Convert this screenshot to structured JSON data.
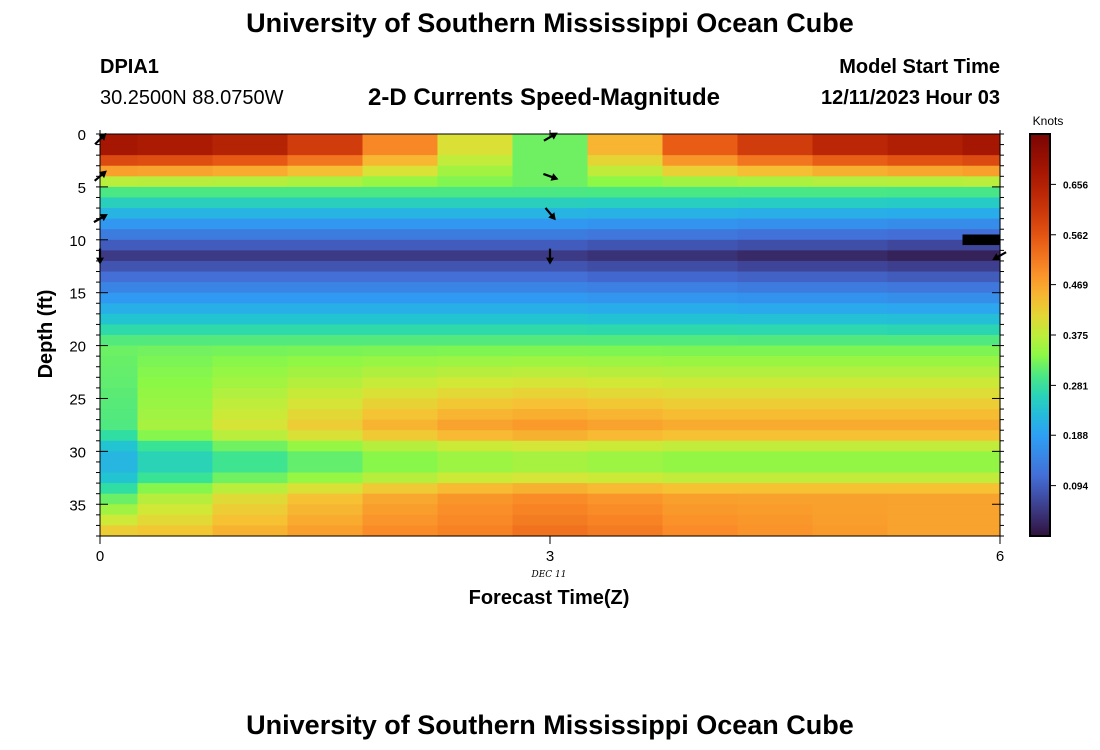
{
  "header": {
    "title": "University of Southern Mississippi Ocean Cube",
    "station_id": "DPIA1",
    "coordinates": "30.2500N  88.0750W",
    "chart_title": "2-D Currents Speed-Magnitude",
    "model_start_label": "Model Start Time",
    "model_start_value": "12/11/2023 Hour 03"
  },
  "footer": {
    "title": "University of Southern Mississippi Ocean Cube"
  },
  "chart_data": {
    "type": "heatmap",
    "title": "2-D Currents Speed-Magnitude",
    "xlabel": "Forecast Time(Z)",
    "ylabel": "Depth (ft)",
    "x_ticks": [
      "0",
      "3",
      "6"
    ],
    "x_date_label": "DEC 11",
    "xlim": [
      0,
      6
    ],
    "ylim": [
      38,
      0
    ],
    "y_ticks": [
      "0",
      "5",
      "10",
      "15",
      "20",
      "25",
      "30",
      "35"
    ],
    "colorbar": {
      "label": "Knots",
      "range": [
        0.0,
        0.75
      ],
      "ticks": [
        "0.094",
        "0.188",
        "0.281",
        "0.375",
        "0.469",
        "0.562",
        "0.656"
      ]
    },
    "time_columns": [
      0,
      0.5,
      1,
      1.5,
      2,
      2.5,
      3,
      3.5,
      4,
      4.5,
      5,
      5.5,
      6
    ],
    "depth_rows_ft": [
      0.5,
      1.5,
      2.5,
      3.5,
      4.5,
      5.5,
      6.5,
      7.5,
      8.5,
      9.5,
      10.5,
      11.5,
      12.5,
      13.5,
      14.5,
      15.5,
      16.5,
      17.5,
      18.5,
      19.5,
      20.5,
      21.5,
      22.5,
      23.5,
      24.5,
      25.5,
      26.5,
      27.5,
      28.5,
      29.5,
      30.5,
      31.5,
      32.5,
      33.5,
      34.5,
      35.5,
      36.5,
      37.5
    ],
    "profiles": {
      "surface": [
        0.68,
        0.67,
        0.65,
        0.6,
        0.5,
        0.4,
        0.32,
        0.45,
        0.55,
        0.6,
        0.64,
        0.66,
        0.68
      ],
      "minimum": [
        0.05,
        0.05,
        0.05,
        0.05,
        0.05,
        0.05,
        0.05,
        0.04,
        0.04,
        0.03,
        0.03,
        0.02,
        0.02
      ],
      "deep": [
        0.3,
        0.36,
        0.4,
        0.43,
        0.46,
        0.48,
        0.49,
        0.48,
        0.47,
        0.47,
        0.47,
        0.47,
        0.47
      ],
      "bottom": [
        0.44,
        0.44,
        0.46,
        0.48,
        0.5,
        0.51,
        0.53,
        0.52,
        0.5,
        0.49,
        0.48,
        0.47,
        0.47
      ]
    },
    "vectors": [
      {
        "t": 0,
        "depth": 0.5,
        "angle_deg": 45
      },
      {
        "t": 0,
        "depth": 4,
        "angle_deg": 40
      },
      {
        "t": 0,
        "depth": 8,
        "angle_deg": 30
      },
      {
        "t": 0,
        "depth": 11.5,
        "angle_deg": -90
      },
      {
        "t": 3,
        "depth": 0.3,
        "angle_deg": 30
      },
      {
        "t": 3,
        "depth": 4,
        "angle_deg": -20
      },
      {
        "t": 3,
        "depth": 7.5,
        "angle_deg": -50
      },
      {
        "t": 3,
        "depth": 11.5,
        "angle_deg": -90
      },
      {
        "t": 6,
        "depth": 11.5,
        "angle_deg": 210
      }
    ],
    "land_mask": [
      {
        "t": 6,
        "depth_from": 9.5,
        "depth_to": 10.5
      }
    ]
  }
}
